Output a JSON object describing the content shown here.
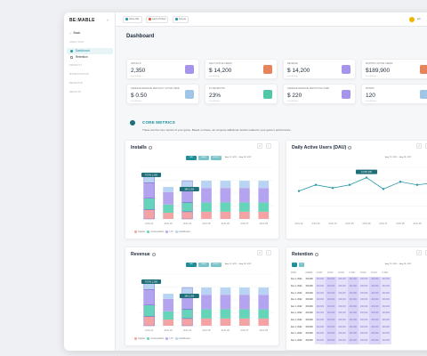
{
  "sidebar": {
    "logo": "BE:MABLE",
    "back": "Back",
    "sections": [
      {
        "label": "ANALYTICS",
        "top": 46
      },
      {
        "label": "PRODUCT",
        "top": 72
      },
      {
        "label": "MONETIZATION",
        "top": 82
      },
      {
        "label": "BEHAVIOR",
        "top": 92
      },
      {
        "label": "RESULTS",
        "top": 102
      }
    ],
    "items": [
      {
        "label": "Dashboard"
      },
      {
        "label": "Retention"
      }
    ]
  },
  "topbar": {
    "pills": [
      {
        "label": "Game NFL",
        "color": "#2a9aa6"
      },
      {
        "label": "Game Product",
        "color": "#e65c3a"
      },
      {
        "label": "Kanyas",
        "color": "#2a9aa6"
      }
    ],
    "lang": "EN"
  },
  "page": {
    "title": "Dashboard",
    "section_title": "CORE METRICS",
    "section_desc": "These are the core metrics of your game. Based on these, we compute additional metrics related to your game's performance."
  },
  "kpis": [
    {
      "label": "INSTALLS",
      "value": "2,350",
      "sub": "Last 30 Days",
      "color": "#a694ea"
    },
    {
      "label": "DAILY ACTIVE USERS",
      "value": "$ 14,200",
      "sub": "Last 30 Days",
      "color": "#e6835c"
    },
    {
      "label": "REVENUE",
      "value": "$ 14,200",
      "sub": "Last 30 Days",
      "color": "#a694ea"
    },
    {
      "label": "MONTHLY ACTIVE USERS",
      "value": "$189,900",
      "sub": "Last 30 Days",
      "color": "#e6835c"
    },
    {
      "label": "AVERAGE REVENUE PER DAILY ACTIVE USER",
      "value": "$ 0.50",
      "sub": "Last 30 Days",
      "color": "#9fc6e6"
    },
    {
      "label": "D1 RETENTION",
      "value": "23%",
      "sub": "Last 30 Days",
      "color": "#52c7a7"
    },
    {
      "label": "AVERAGE REVENUE PER PAYING USER",
      "value": "$ 220",
      "sub": "Last 30 Days",
      "color": "#a694ea"
    },
    {
      "label": "PAYERS",
      "value": "120",
      "sub": "Last 30 Days",
      "color": "#9fc6e6"
    }
  ],
  "panels": {
    "installs": {
      "title": "Installs",
      "segs": [
        "DAY",
        "WEEK",
        "MONTH"
      ],
      "date": "Aug 22, 2022 — Aug 28, 2022",
      "tooltip1": "TOTAL 2,350",
      "tooltip2": "389 2,350",
      "legend": [
        "Organic",
        "Ad Acquisition",
        "LTV",
        "Unattributed"
      ]
    },
    "dau": {
      "title": "Daily Active Users (DAU)",
      "date": "Aug 22, 2022 — Aug 28, 2022",
      "tooltip": "12,567,200"
    },
    "revenue": {
      "title": "Revenue",
      "segs": [
        "DAY",
        "WEEK",
        "MONTH"
      ],
      "date": "Aug 22, 2022 — Aug 28, 2022",
      "tooltip1": "TOTAL 2,350",
      "tooltip2": "389 2,350",
      "legend": [
        "Organic",
        "Ad Acquisition",
        "LTV",
        "Unattributed"
      ]
    },
    "retention": {
      "title": "Retention",
      "date": "Aug 22, 2022 — Aug 28, 2022",
      "headers": [
        "DATE",
        "USERS",
        "D DAY",
        "D DAY",
        "D DAY",
        "D DAY",
        "D DAY",
        "D DAY",
        "D DAY"
      ],
      "rows": [
        [
          "Dec 1, 2022",
          "150,000",
          "200,000",
          "200,000",
          "200,000",
          "200,000",
          "200,000",
          "200,000",
          "200,000"
        ],
        [
          "Dec 1, 2022",
          "150,000",
          "200,000",
          "200,000",
          "200,000",
          "200,000",
          "200,000",
          "200,000",
          "200,000"
        ],
        [
          "Dec 1, 2022",
          "150,000",
          "200,000",
          "200,000",
          "200,000",
          "200,000",
          "200,000",
          "200,000",
          "200,000"
        ],
        [
          "Dec 1, 2022",
          "150,000",
          "200,000",
          "200,000",
          "200,000",
          "200,000",
          "200,000",
          "200,000",
          "200,000"
        ],
        [
          "Dec 1, 2022",
          "150,000",
          "200,000",
          "200,000",
          "200,000",
          "200,000",
          "200,000",
          "200,000",
          "200,000"
        ],
        [
          "Dec 1, 2022",
          "150,000",
          "200,000",
          "200,000",
          "200,000",
          "200,000",
          "200,000",
          "200,000",
          "200,000"
        ],
        [
          "Dec 1, 2022",
          "150,000",
          "200,000",
          "200,000",
          "200,000",
          "200,000",
          "200,000",
          "200,000",
          "200,000"
        ],
        [
          "Dec 1, 2022",
          "150,000",
          "200,000",
          "200,000",
          "200,000",
          "200,000",
          "200,000",
          "200,000",
          "200,000"
        ],
        [
          "Dec 1, 2022",
          "150,000",
          "200,000",
          "200,000",
          "200,000",
          "200,000",
          "200,000",
          "200,000",
          "200,000"
        ],
        [
          "Dec 1, 2022",
          "150,000",
          "200,000",
          "200,000",
          "200,000",
          "200,000",
          "200,000",
          "200,000",
          "200,000"
        ]
      ]
    }
  },
  "chart_data": [
    {
      "type": "bar",
      "stacked": true,
      "categories": [
        "AUG 22",
        "AUG 23",
        "AUG 24",
        "AUG 25",
        "AUG 26",
        "AUG 27",
        "AUG 28"
      ],
      "series": [
        {
          "name": "Organic",
          "values": [
            18,
            12,
            14,
            14,
            14,
            14,
            14
          ],
          "color": "#f3a3a3"
        },
        {
          "name": "Ad Acquisition",
          "values": [
            22,
            16,
            18,
            18,
            18,
            18,
            18
          ],
          "color": "#66d4b8"
        },
        {
          "name": "LTV",
          "values": [
            30,
            24,
            28,
            28,
            28,
            28,
            28
          ],
          "color": "#b4a4f0"
        },
        {
          "name": "Unattributed",
          "values": [
            18,
            10,
            14,
            14,
            14,
            14,
            14
          ],
          "color": "#b9d4f2"
        }
      ],
      "highlight": [
        0,
        2
      ],
      "ylim": [
        0,
        100
      ]
    },
    {
      "type": "line",
      "x": [
        "AUG 22",
        "AUG 23",
        "AUG 24",
        "AUG 25",
        "AUG 26",
        "AUG 27",
        "AUG 28",
        "AUG 29",
        "AUG 30"
      ],
      "values": [
        54,
        66,
        60,
        66,
        80,
        58,
        72,
        66,
        70
      ],
      "color": "#2a9aa6",
      "ylim": [
        0,
        100
      ]
    },
    {
      "type": "bar",
      "stacked": true,
      "categories": [
        "AUG 22",
        "AUG 23",
        "AUG 24",
        "AUG 25",
        "AUG 26",
        "AUG 27",
        "AUG 28"
      ],
      "series": [
        {
          "name": "Organic",
          "values": [
            18,
            12,
            14,
            14,
            14,
            14,
            14
          ],
          "color": "#f3a3a3"
        },
        {
          "name": "Ad Acquisition",
          "values": [
            22,
            16,
            18,
            18,
            18,
            18,
            18
          ],
          "color": "#66d4b8"
        },
        {
          "name": "LTV",
          "values": [
            30,
            24,
            28,
            28,
            28,
            28,
            28
          ],
          "color": "#b4a4f0"
        },
        {
          "name": "Unattributed",
          "values": [
            18,
            10,
            14,
            14,
            14,
            14,
            14
          ],
          "color": "#b9d4f2"
        }
      ],
      "highlight": [
        0,
        2
      ],
      "ylim": [
        0,
        100
      ]
    }
  ]
}
